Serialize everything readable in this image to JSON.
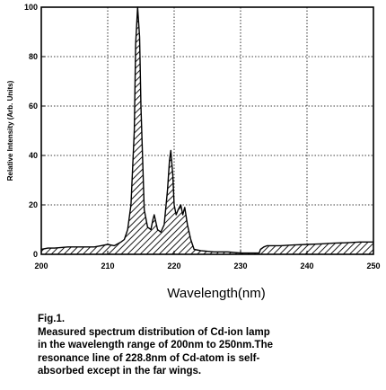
{
  "chart_data": {
    "type": "line",
    "xlabel": "Wavelength(nm)",
    "ylabel": "Relative Intensity (Arb. Units)",
    "xlim": [
      200,
      250
    ],
    "ylim": [
      0,
      100
    ],
    "x_ticks": [
      200,
      210,
      220,
      230,
      240,
      250
    ],
    "y_ticks": [
      0,
      20,
      40,
      60,
      80,
      100
    ],
    "grid": true,
    "grid_style": "dotted",
    "fill": "hatched",
    "series": [
      {
        "x": [
          200,
          201,
          202,
          204,
          206,
          208,
          209,
          210,
          211,
          212,
          212.5,
          213,
          213.5,
          214,
          214.2,
          214.5,
          214.8,
          215,
          215.5,
          216,
          216.5,
          216.8,
          217,
          217.5,
          218,
          218.5,
          219,
          219.3,
          219.5,
          219.8,
          220,
          220.3,
          220.6,
          221,
          221.3,
          221.6,
          222,
          222.5,
          223,
          224,
          226,
          228,
          230,
          232,
          232.8,
          233,
          233.5,
          234,
          236,
          238,
          240,
          242,
          244,
          246,
          248,
          250
        ],
        "y": [
          2,
          2.5,
          2.5,
          3,
          3,
          3,
          3.5,
          4,
          3.5,
          5,
          6,
          10,
          20,
          50,
          85,
          100,
          88,
          60,
          18,
          11,
          10,
          14,
          16,
          10,
          9,
          12,
          26,
          38,
          42,
          32,
          20,
          16,
          18,
          20,
          16,
          19,
          12,
          6,
          2,
          1.5,
          1,
          1,
          0.5,
          0.5,
          0.5,
          2,
          3,
          3.5,
          3.5,
          3.8,
          4,
          4.2,
          4.5,
          4.7,
          5,
          5
        ]
      }
    ]
  },
  "caption": {
    "title": "Fig.1.",
    "lines": [
      "Measured spectrum distribution of Cd-ion  lamp",
      "in the wavelength range of 200nm to 250nm.The",
      "resonance line of 228.8nm of Cd-atom is self-",
      "absorbed except in the far wings."
    ]
  }
}
